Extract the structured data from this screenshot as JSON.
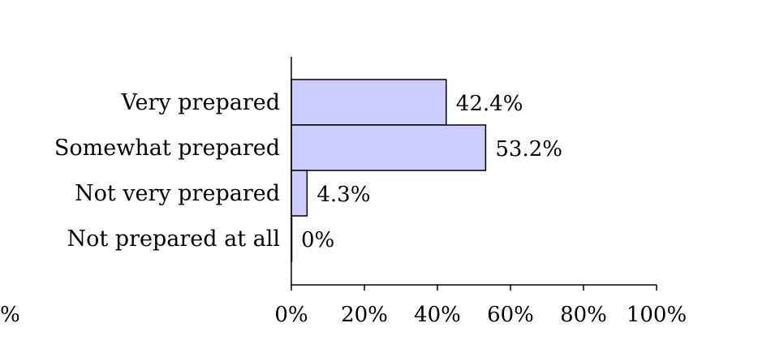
{
  "chart_data": {
    "type": "bar",
    "orientation": "horizontal",
    "categories": [
      "Very prepared",
      "Somewhat prepared",
      "Not very prepared",
      "Not prepared at all"
    ],
    "values": [
      42.4,
      53.2,
      4.3,
      0
    ],
    "value_labels": [
      "42.4%",
      "53.2%",
      "4.3%",
      "0%"
    ],
    "xlim": [
      0,
      100
    ],
    "xticks": [
      0,
      20,
      40,
      60,
      80,
      100
    ],
    "xtick_labels": [
      "0%",
      "20%",
      "40%",
      "60%",
      "80%",
      "100%"
    ],
    "partial_tick_label": "%",
    "grid": false,
    "legend": "none",
    "bar_fill": "#ccccff",
    "bar_stroke": "#000000"
  }
}
